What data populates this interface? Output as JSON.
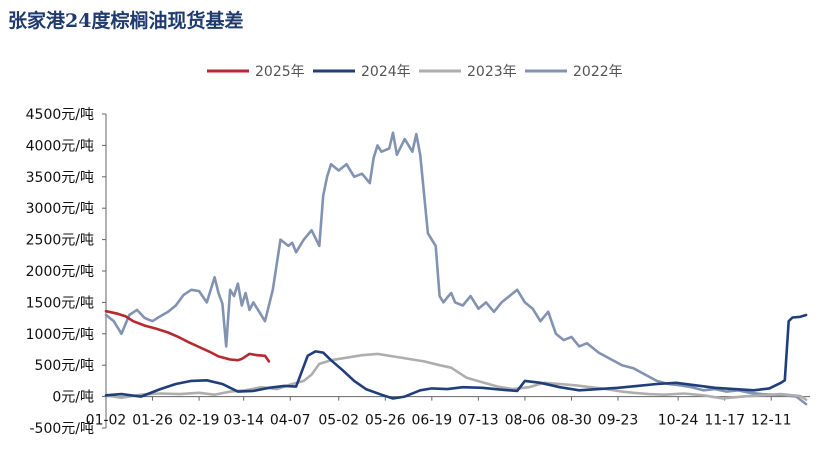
{
  "title": "张家港24度棕榈油现货基差",
  "chart_data": {
    "type": "line",
    "title": "张家港24度棕榈油现货基差",
    "xlabel": "",
    "ylabel": "",
    "ylim": [
      -500,
      4500
    ],
    "yticks": [
      "4500元/吨",
      "4000元/吨",
      "3500元/吨",
      "3000元/吨",
      "2500元/吨",
      "2000元/吨",
      "1500元/吨",
      "1000元/吨",
      "500元/吨",
      "0元/吨",
      "-500元/吨"
    ],
    "ytick_values": [
      4500,
      4000,
      3500,
      3000,
      2500,
      2000,
      1500,
      1000,
      500,
      0,
      -500
    ],
    "xtick_labels": [
      "01-02",
      "01-26",
      "02-19",
      "03-14",
      "04-07",
      "05-02",
      "05-26",
      "06-19",
      "07-13",
      "08-06",
      "08-30",
      "09-23",
      "10-24",
      "11-17",
      "12-11"
    ],
    "xtick_day_of_year": [
      2,
      26,
      50,
      73,
      97,
      122,
      146,
      170,
      194,
      218,
      242,
      266,
      297,
      321,
      345
    ],
    "x_unit": "day of year",
    "xlim": [
      2,
      365
    ],
    "grid": false,
    "legend": "top",
    "series": [
      {
        "name": "2025年",
        "color": "#b5292f",
        "x": [
          2,
          8,
          12,
          16,
          22,
          28,
          34,
          40,
          45,
          50,
          55,
          60,
          66,
          70,
          72,
          74,
          76,
          80,
          84,
          86
        ],
        "y": [
          1360,
          1320,
          1280,
          1200,
          1130,
          1080,
          1020,
          940,
          860,
          790,
          720,
          640,
          590,
          580,
          600,
          640,
          680,
          660,
          650,
          560
        ]
      },
      {
        "name": "2024年",
        "color": "#1f3e7a",
        "x": [
          2,
          10,
          20,
          30,
          38,
          46,
          54,
          62,
          70,
          78,
          86,
          94,
          100,
          106,
          110,
          114,
          118,
          124,
          130,
          136,
          144,
          150,
          156,
          164,
          170,
          178,
          186,
          196,
          206,
          214,
          218,
          226,
          236,
          246,
          256,
          266,
          276,
          286,
          296,
          306,
          316,
          326,
          336,
          344,
          350,
          352,
          354,
          356,
          360,
          363
        ],
        "y": [
          20,
          40,
          0,
          120,
          200,
          250,
          260,
          200,
          80,
          90,
          140,
          170,
          160,
          650,
          720,
          700,
          580,
          420,
          250,
          120,
          30,
          -30,
          0,
          100,
          130,
          120,
          150,
          140,
          110,
          90,
          250,
          220,
          150,
          100,
          120,
          140,
          170,
          200,
          220,
          180,
          140,
          120,
          100,
          130,
          220,
          260,
          1200,
          1260,
          1270,
          1300
        ]
      },
      {
        "name": "2023年",
        "color": "#aeaeae",
        "x": [
          2,
          10,
          20,
          30,
          40,
          50,
          58,
          66,
          74,
          82,
          90,
          98,
          104,
          108,
          112,
          118,
          126,
          134,
          142,
          150,
          158,
          166,
          174,
          180,
          188,
          196,
          204,
          212,
          220,
          228,
          236,
          244,
          252,
          260,
          268,
          274,
          282,
          290,
          300,
          310,
          320,
          330,
          340,
          350,
          360,
          363
        ],
        "y": [
          20,
          -20,
          30,
          50,
          40,
          60,
          30,
          80,
          100,
          150,
          120,
          200,
          250,
          350,
          520,
          580,
          620,
          660,
          680,
          640,
          600,
          560,
          500,
          460,
          300,
          230,
          160,
          120,
          150,
          220,
          200,
          180,
          150,
          120,
          80,
          60,
          40,
          30,
          50,
          20,
          -30,
          0,
          20,
          40,
          10,
          -50
        ]
      },
      {
        "name": "2022年",
        "color": "#8293b2",
        "x": [
          2,
          6,
          10,
          14,
          18,
          22,
          26,
          30,
          34,
          38,
          42,
          46,
          50,
          54,
          58,
          60,
          62,
          64,
          66,
          68,
          70,
          72,
          74,
          76,
          78,
          80,
          84,
          88,
          92,
          96,
          98,
          100,
          104,
          108,
          112,
          114,
          116,
          118,
          122,
          126,
          130,
          134,
          138,
          140,
          142,
          144,
          148,
          150,
          152,
          156,
          160,
          162,
          164,
          168,
          172,
          174,
          176,
          178,
          180,
          182,
          186,
          190,
          194,
          198,
          202,
          206,
          210,
          214,
          218,
          222,
          226,
          230,
          234,
          238,
          242,
          246,
          250,
          256,
          262,
          268,
          274,
          280,
          286,
          292,
          298,
          304,
          310,
          316,
          322,
          328,
          334,
          340,
          346,
          352,
          358,
          363
        ],
        "y": [
          1300,
          1200,
          1000,
          1300,
          1380,
          1250,
          1200,
          1280,
          1350,
          1450,
          1620,
          1700,
          1680,
          1500,
          1900,
          1650,
          1480,
          800,
          1700,
          1600,
          1800,
          1450,
          1650,
          1380,
          1500,
          1400,
          1200,
          1700,
          2500,
          2400,
          2450,
          2300,
          2500,
          2650,
          2400,
          3200,
          3500,
          3700,
          3600,
          3700,
          3500,
          3550,
          3400,
          3800,
          4000,
          3900,
          3950,
          4200,
          3850,
          4100,
          3900,
          4180,
          3850,
          2600,
          2400,
          1600,
          1500,
          1580,
          1650,
          1500,
          1450,
          1600,
          1400,
          1500,
          1350,
          1500,
          1600,
          1700,
          1500,
          1400,
          1200,
          1350,
          1000,
          900,
          950,
          800,
          850,
          700,
          600,
          500,
          450,
          350,
          250,
          200,
          180,
          150,
          100,
          120,
          80,
          100,
          60,
          40,
          30,
          20,
          0,
          -120
        ]
      }
    ]
  }
}
